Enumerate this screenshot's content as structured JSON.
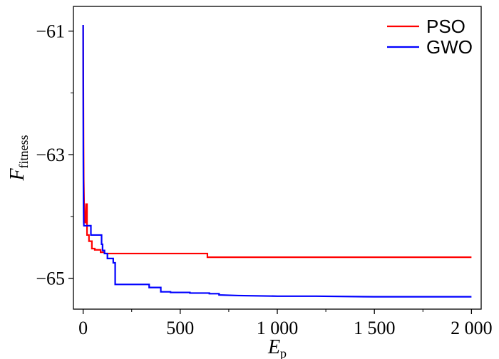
{
  "chart_data": {
    "type": "line",
    "xlabel": {
      "main": "E",
      "sub": "p"
    },
    "ylabel": {
      "main": "F",
      "sub": "fitness"
    },
    "xlim": [
      -50,
      2050
    ],
    "ylim": [
      -65.5,
      -60.6
    ],
    "xticks": [
      0,
      500,
      1000,
      1500,
      2000
    ],
    "xtick_labels": [
      "0",
      "500",
      "1 000",
      "1 500",
      "2 000"
    ],
    "x_minor_ticks": [
      250,
      750,
      1250,
      1750
    ],
    "yticks": [
      -61,
      -63,
      -65
    ],
    "ytick_labels": [
      "−61",
      "−63",
      "−65"
    ],
    "y_minor_ticks": [
      -62,
      -64
    ],
    "grid": false,
    "legend": "top-right",
    "series": [
      {
        "name": "PSO",
        "color": "#ff0000",
        "x": [
          0,
          1,
          2,
          3,
          5,
          8,
          10,
          15,
          15,
          20,
          20,
          30,
          30,
          45,
          45,
          60,
          60,
          90,
          90,
          110,
          110,
          640,
          640,
          2000
        ],
        "y": [
          -60.9,
          -61.8,
          -62.8,
          -63.4,
          -63.8,
          -64.0,
          -64.1,
          -64.1,
          -63.8,
          -63.8,
          -64.3,
          -64.3,
          -64.4,
          -64.4,
          -64.52,
          -64.52,
          -64.54,
          -64.54,
          -64.58,
          -64.58,
          -64.6,
          -64.6,
          -64.66,
          -64.66
        ]
      },
      {
        "name": "GWO",
        "color": "#0000ff",
        "x": [
          0,
          1,
          2,
          3,
          4,
          5,
          5,
          40,
          40,
          95,
          95,
          100,
          100,
          110,
          110,
          125,
          125,
          155,
          155,
          165,
          165,
          175,
          175,
          340,
          340,
          400,
          400,
          450,
          450,
          550,
          550,
          650,
          650,
          700,
          700,
          800,
          1000,
          1200,
          1500,
          2000
        ],
        "y": [
          -60.9,
          -63.0,
          -63.8,
          -64.1,
          -64.15,
          -64.15,
          -64.15,
          -64.15,
          -64.3,
          -64.3,
          -64.45,
          -64.45,
          -64.55,
          -64.55,
          -64.6,
          -64.6,
          -64.68,
          -64.68,
          -64.75,
          -64.75,
          -65.1,
          -65.1,
          -65.1,
          -65.1,
          -65.15,
          -65.15,
          -65.22,
          -65.22,
          -65.23,
          -65.23,
          -65.24,
          -65.24,
          -65.25,
          -65.25,
          -65.27,
          -65.28,
          -65.29,
          -65.29,
          -65.3,
          -65.3
        ]
      }
    ]
  }
}
